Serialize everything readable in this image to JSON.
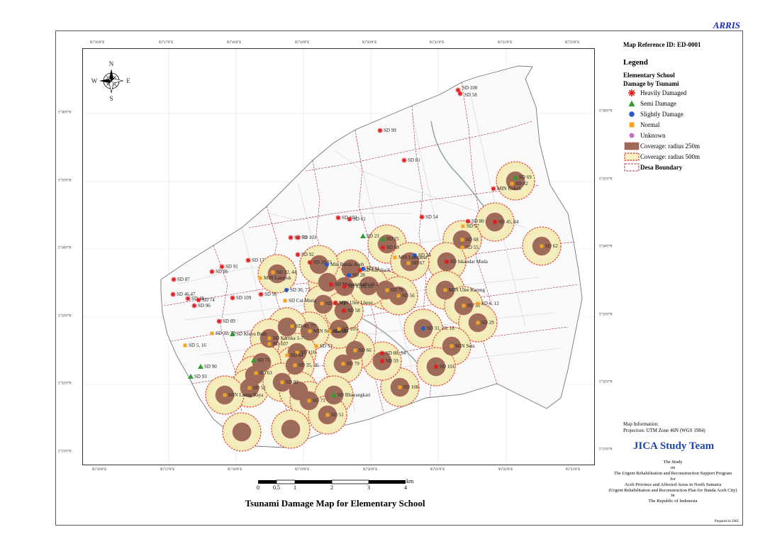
{
  "header": {
    "brand": "ARRIS"
  },
  "legend": {
    "map_reference": "Map Reference ID: ED-0001",
    "title": "Legend",
    "subtitle1": "Elementary School",
    "subtitle2": "Damage by Tsunami",
    "items": [
      {
        "label": "Heavily Damaged",
        "symbol": "star",
        "color": "#e31a1c"
      },
      {
        "label": "Semi Damage",
        "symbol": "triangle",
        "color": "#2e9d2e"
      },
      {
        "label": "Slightly Damage",
        "symbol": "circle",
        "color": "#2659c9"
      },
      {
        "label": "Normal",
        "symbol": "square",
        "color": "#f4a423"
      },
      {
        "label": "Unknown",
        "symbol": "circle",
        "color": "#c56fc8"
      },
      {
        "label": "Coverage: radius 250m",
        "symbol": "coverage-250",
        "color": "#9d6b5a"
      },
      {
        "label": "Coverage: radius 500m",
        "symbol": "coverage-500",
        "color": "#f6f1c3"
      },
      {
        "label": "Desa Boundary",
        "symbol": "boundary",
        "color": "#a0304a"
      }
    ]
  },
  "map_info": {
    "line1": "Map Information:",
    "line2": "Projection: UTM Zone 46N (WGS 1984)"
  },
  "team": "JICA Study Team",
  "study_lines": [
    "The Study",
    "on",
    "The Urgent Rehabilitation and Reconstruction Support Program",
    "for",
    "Aceh Province and Affected Areas in North Sumatra",
    "(Urgent Rehabilitation and Reconstruction Plan for Banda Aceh City)",
    "in",
    "The Republic of Indonesia"
  ],
  "prepared": "Prepared in 2005",
  "map_title": "Tsunami Damage Map for Elementary School",
  "scale": {
    "labels": [
      "0",
      "0.5",
      "1",
      "2",
      "3",
      "4"
    ],
    "unit": "km"
  },
  "coordinates": {
    "longitudes": [
      "95°16'0\"E",
      "95°17'0\"E",
      "95°18'0\"E",
      "95°19'0\"E",
      "95°20'0\"E",
      "95°21'0\"E",
      "95°22'0\"E",
      "95°23'0\"E"
    ],
    "latitudes": [
      "5°36'0\"N",
      "5°35'0\"N",
      "5°34'0\"N",
      "5°33'0\"N",
      "5°32'0\"N",
      "5°31'0\"N"
    ]
  },
  "compass": {
    "north": "N",
    "south": "S",
    "east": "E",
    "west": "W"
  },
  "schools": [
    {
      "label": "SD 100",
      "status": "heavy"
    },
    {
      "label": "SD 58",
      "status": "heavy"
    },
    {
      "label": "SD 99",
      "status": "heavy"
    },
    {
      "label": "SD 81",
      "status": "heavy"
    },
    {
      "label": "SD 69",
      "status": "semi"
    },
    {
      "label": "SD 82",
      "status": "normal"
    },
    {
      "label": "MIN Rukoh",
      "status": "heavy"
    },
    {
      "label": "SD 102",
      "status": "heavy"
    },
    {
      "label": "SD 61",
      "status": "heavy"
    },
    {
      "label": "SD 54",
      "status": "heavy"
    },
    {
      "label": "SD 80",
      "status": "heavy"
    },
    {
      "label": "SD 57",
      "status": "normal"
    },
    {
      "label": "SD 62",
      "status": "normal"
    },
    {
      "label": "SD 45, 84",
      "status": "heavy"
    },
    {
      "label": "SD 23",
      "status": "semi"
    },
    {
      "label": "SD 25",
      "status": "semi"
    },
    {
      "label": "SD 60",
      "status": "heavy"
    },
    {
      "label": "SD 70",
      "status": "heavy"
    },
    {
      "label": "SD 103",
      "status": "heavy"
    },
    {
      "label": "SD 92",
      "status": "heavy"
    },
    {
      "label": "SD 91",
      "status": "heavy"
    },
    {
      "label": "SD 86",
      "status": "heavy"
    },
    {
      "label": "SD 87",
      "status": "heavy"
    },
    {
      "label": "SD 46,47",
      "status": "heavy"
    },
    {
      "label": "SD 48",
      "status": "heavy"
    },
    {
      "label": "SD 74",
      "status": "heavy"
    },
    {
      "label": "SD 17",
      "status": "heavy"
    },
    {
      "label": "SD 20,21",
      "status": "heavy"
    },
    {
      "label": "Min Banda Aceh",
      "status": "slight"
    },
    {
      "label": "SD 28",
      "status": "slight"
    },
    {
      "label": "SD Kartika 6",
      "status": "heavy"
    },
    {
      "label": "SD 34",
      "status": "slight"
    },
    {
      "label": "SD 24",
      "status": "slight"
    },
    {
      "label": "SD 67",
      "status": "normal"
    },
    {
      "label": "MIS Lamjabat",
      "status": "normal"
    },
    {
      "label": "SD 68",
      "status": "normal"
    },
    {
      "label": "SD 55",
      "status": "normal"
    },
    {
      "label": "SD Iskandar Muda",
      "status": "heavy"
    },
    {
      "label": "SD 32, 44",
      "status": "normal"
    },
    {
      "label": "MIN Lampuk",
      "status": "normal"
    },
    {
      "label": "SD 76",
      "status": "normal"
    },
    {
      "label": "SD 56",
      "status": "normal"
    },
    {
      "label": "MIN Ulee Kareng",
      "status": "normal"
    },
    {
      "label": "SD 36",
      "status": "normal"
    },
    {
      "label": "SD 4, 12",
      "status": "normal"
    },
    {
      "label": "SD Muhammadiyah 2",
      "status": "heavy"
    },
    {
      "label": "SD 9, 10, 11",
      "status": "heavy"
    },
    {
      "label": "SD 30, 72",
      "status": "slight"
    },
    {
      "label": "SD Cut Mutia",
      "status": "normal"
    },
    {
      "label": "SD 43, 73",
      "status": "normal"
    },
    {
      "label": "MIN Ulee Lheue",
      "status": "heavy"
    },
    {
      "label": "SD 58",
      "status": "heavy"
    },
    {
      "label": "SD 96",
      "status": "heavy"
    },
    {
      "label": "SD 109",
      "status": "heavy"
    },
    {
      "label": "SD 95",
      "status": "heavy"
    },
    {
      "label": "SD 89",
      "status": "heavy"
    },
    {
      "label": "SD Kleyu Budi",
      "status": "semi"
    },
    {
      "label": "SD 22, 75",
      "status": "normal"
    },
    {
      "label": "SD 40, 77",
      "status": "normal"
    },
    {
      "label": "MIN Sukadamai",
      "status": "normal"
    },
    {
      "label": "SD 104",
      "status": "normal"
    },
    {
      "label": "SD 105",
      "status": "normal"
    },
    {
      "label": "SD 31, 19, 18",
      "status": "slight"
    },
    {
      "label": "SD 29",
      "status": "normal"
    },
    {
      "label": "SD Kartika 1-7",
      "status": "normal"
    },
    {
      "label": "SD 107",
      "status": "normal"
    },
    {
      "label": "SD 53",
      "status": "normal"
    },
    {
      "label": "SD 66",
      "status": "normal"
    },
    {
      "label": "SD 88, 94",
      "status": "heavy"
    },
    {
      "label": "MIN Seta",
      "status": "normal"
    },
    {
      "label": "SD 5, 16",
      "status": "normal"
    },
    {
      "label": "SD 110",
      "status": "normal"
    },
    {
      "label": "SD 64",
      "status": "normal"
    },
    {
      "label": "SD 35, 36",
      "status": "normal"
    },
    {
      "label": "SD 79",
      "status": "normal"
    },
    {
      "label": "SD 59",
      "status": "heavy"
    },
    {
      "label": "SD 101",
      "status": "heavy"
    },
    {
      "label": "SD 90",
      "status": "semi"
    },
    {
      "label": "SD 93",
      "status": "semi"
    },
    {
      "label": "SD 75",
      "status": "semi"
    },
    {
      "label": "SD 63",
      "status": "normal"
    },
    {
      "label": "SD 52",
      "status": "normal"
    },
    {
      "label": "SD 92",
      "status": "normal"
    },
    {
      "label": "SD Bhayangkari",
      "status": "semi"
    },
    {
      "label": "SD 108",
      "status": "normal"
    },
    {
      "label": "MIN Lueng Raya",
      "status": "normal"
    },
    {
      "label": "SD 71",
      "status": "normal"
    },
    {
      "label": "SD 51",
      "status": "normal"
    }
  ]
}
